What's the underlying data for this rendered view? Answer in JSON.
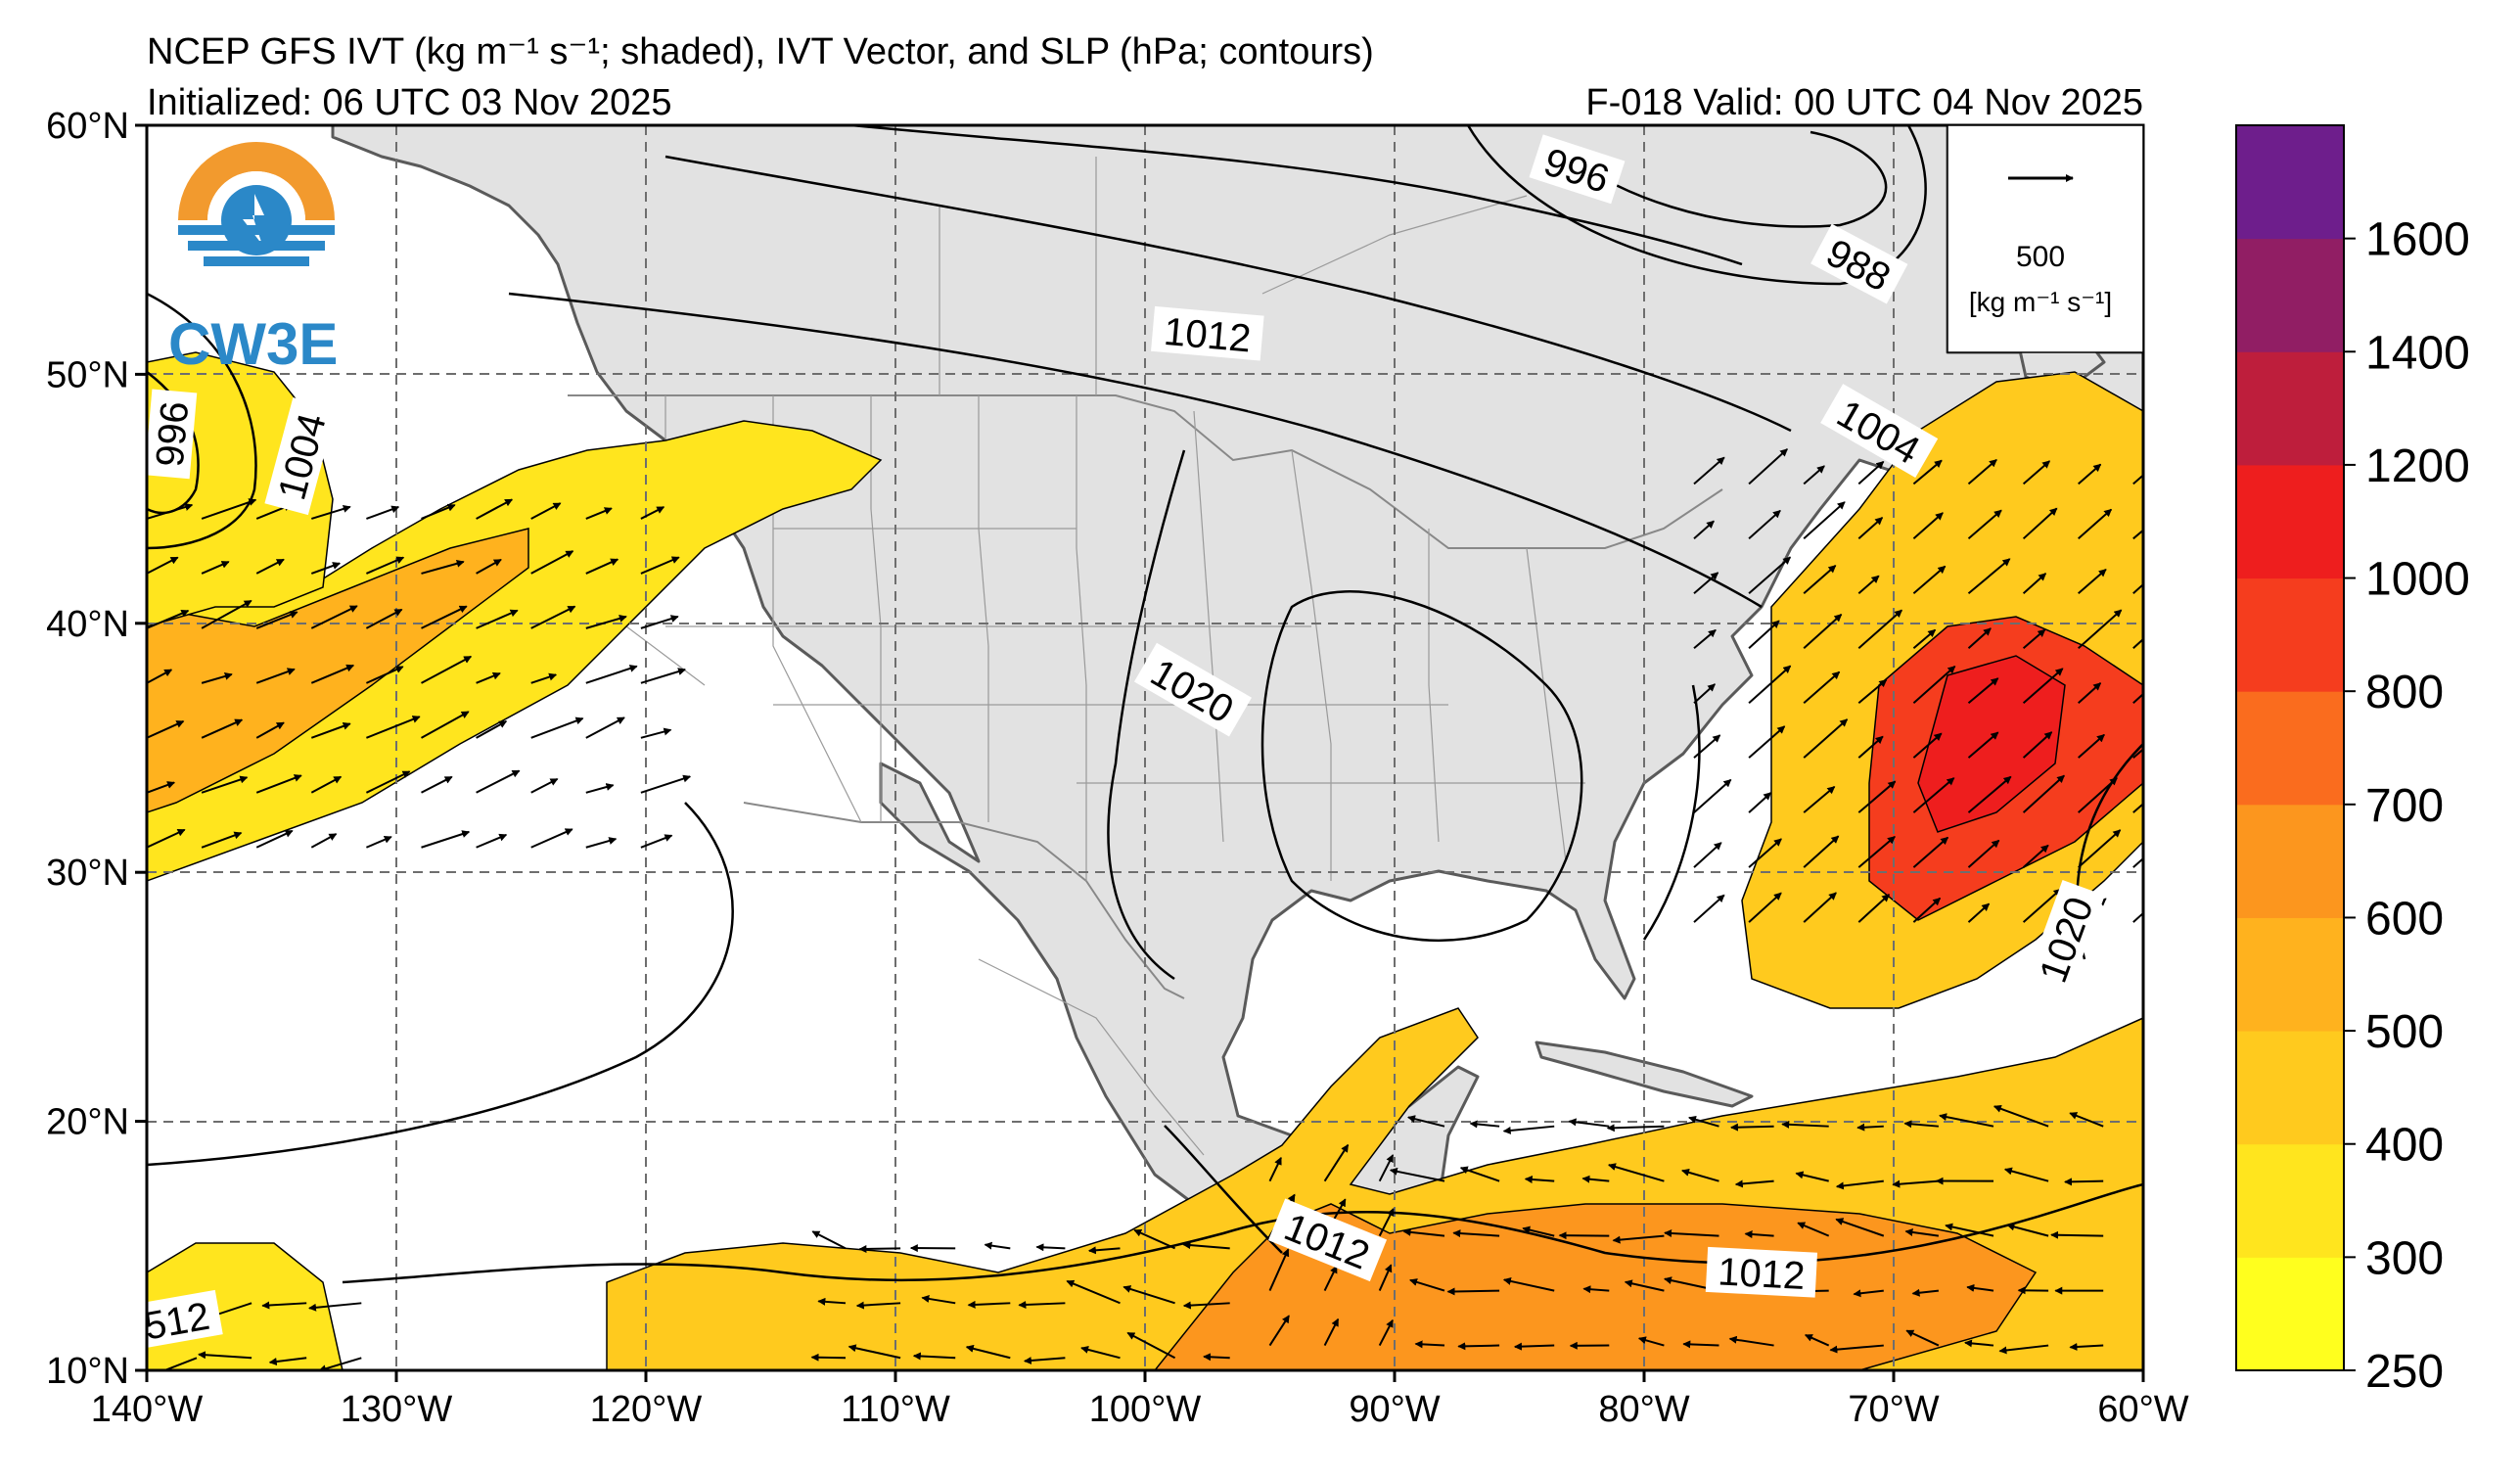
{
  "header": {
    "title": "NCEP GFS IVT (kg m⁻¹ s⁻¹; shaded), IVT Vector, and SLP (hPa; contours)",
    "initialized": "Initialized: 06 UTC 03 Nov 2025",
    "valid": "F-018  Valid: 00 UTC 04 Nov 2025"
  },
  "logo": {
    "text": "CW3E",
    "icon": "cw3e-water-drop-logo-icon"
  },
  "map": {
    "lon_ticks": [
      "140°W",
      "130°W",
      "120°W",
      "110°W",
      "100°W",
      "90°W",
      "80°W",
      "70°W",
      "60°W"
    ],
    "lat_ticks": [
      "60°N",
      "50°N",
      "40°N",
      "30°N",
      "20°N",
      "10°N"
    ],
    "contour_labels": [
      {
        "text": "996",
        "lon": -82.7,
        "lat": 58.2,
        "angle": 18
      },
      {
        "text": "988",
        "lon": -71.4,
        "lat": 54.4,
        "angle": 28
      },
      {
        "text": "1012",
        "lon": -97.5,
        "lat": 51.6,
        "angle": 5
      },
      {
        "text": "1004",
        "lon": -70.6,
        "lat": 47.7,
        "angle": 30
      },
      {
        "text": "996",
        "lon": -139.0,
        "lat": 47.6,
        "angle": -85
      },
      {
        "text": "1004",
        "lon": -133.8,
        "lat": 46.7,
        "angle": -75
      },
      {
        "text": "1020",
        "lon": -98.1,
        "lat": 37.3,
        "angle": 30
      },
      {
        "text": "1020",
        "lon": -63.1,
        "lat": 27.3,
        "angle": -70
      },
      {
        "text": "1012",
        "lon": -92.7,
        "lat": 15.2,
        "angle": 22
      },
      {
        "text": "1012",
        "lon": -75.3,
        "lat": 13.9,
        "angle": 3
      },
      {
        "text": "512",
        "lon": -138.8,
        "lat": 12.0,
        "angle": -10
      }
    ],
    "reference_vector": {
      "value": "500",
      "unit": "[kg m⁻¹ s⁻¹]"
    }
  },
  "colorbar": {
    "levels": [
      250,
      300,
      400,
      500,
      600,
      700,
      800,
      1000,
      1200,
      1400,
      1600
    ],
    "labels": [
      "250",
      "300",
      "400",
      "500",
      "600",
      "700",
      "800",
      "1000",
      "1200",
      "1400",
      "1600"
    ],
    "colors": [
      "#ffff1e",
      "#ffe51e",
      "#ffca1e",
      "#ffb21e",
      "#fc961e",
      "#fa6c1e",
      "#f53d1e",
      "#ee1e1e",
      "#be1e3c",
      "#911e64",
      "#6e1e8c"
    ]
  },
  "colors": {
    "land": "#e2e2e2",
    "ocean": "#ffffff",
    "border": "#808080",
    "coast": "#5a5a5a",
    "grid": "#6e6e6e"
  }
}
